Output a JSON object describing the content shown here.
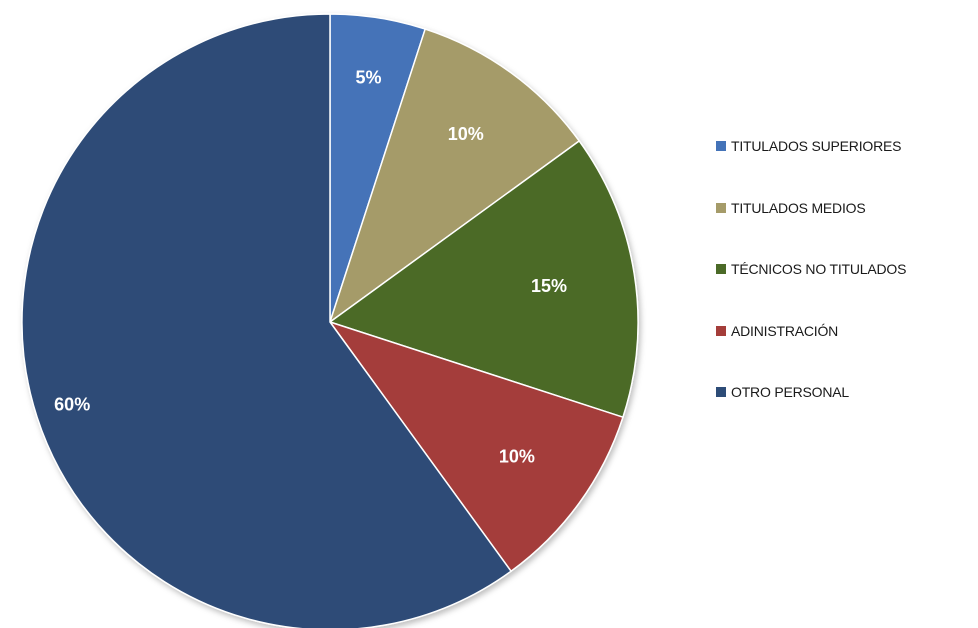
{
  "chart_data": {
    "type": "pie",
    "categories": [
      "TITULADOS SUPERIORES",
      "TITULADOS MEDIOS",
      "TÉCNICOS NO TITULADOS",
      "ADINISTRACIÓN",
      "OTRO PERSONAL"
    ],
    "values": [
      5,
      10,
      15,
      10,
      60
    ],
    "data_labels": [
      "5%",
      "10%",
      "15%",
      "10%",
      "60%"
    ],
    "colors": [
      "#4473b8",
      "#a59b69",
      "#4b6a27",
      "#a43d3a",
      "#2d4c77"
    ],
    "legend_position": "right",
    "start_angle": "top (12 o'clock)",
    "direction": "clockwise"
  }
}
